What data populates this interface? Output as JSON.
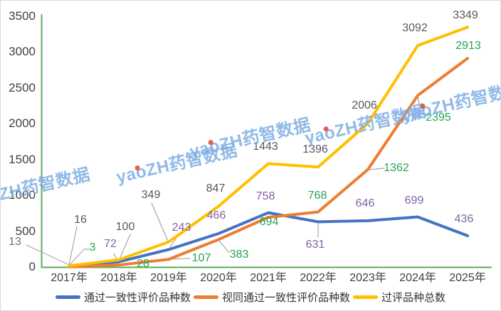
{
  "chart_data": {
    "type": "line",
    "title": "",
    "categories": [
      "2017年",
      "2018年",
      "2019年",
      "2020年",
      "2021年",
      "2022年",
      "2023年",
      "2024年",
      "2025年"
    ],
    "series": [
      {
        "name": "通过一致性评价品种数",
        "color": "#4472C4",
        "label_color": "#8064A2",
        "values": [
          13,
          72,
          243,
          466,
          758,
          631,
          646,
          699,
          436
        ]
      },
      {
        "name": "视同通过一致性评价品种数",
        "color": "#ED7D31",
        "label_color": "#23A456",
        "values": [
          3,
          28,
          107,
          383,
          694,
          768,
          1362,
          2395,
          2913
        ]
      },
      {
        "name": "过评品种总数",
        "color": "#FFC000",
        "label_color": "#595959",
        "values": [
          16,
          100,
          349,
          847,
          1443,
          1396,
          2006,
          3092,
          3349
        ]
      }
    ],
    "y_axis": {
      "min": 0,
      "max": 3500,
      "step": 500,
      "ticks": [
        "0",
        "500",
        "1000",
        "1500",
        "2000",
        "2500",
        "3000",
        "3500"
      ]
    },
    "x_axis": {
      "label_color": "#404040"
    },
    "axis_color": "#5AAD5A",
    "leader_line_color": "#A8A8A8",
    "grid": false,
    "legend_position": "bottom"
  },
  "watermark": {
    "text": "yaoZH药智数据",
    "color": "#7FAEE3",
    "dot_color": "#E2432E"
  }
}
